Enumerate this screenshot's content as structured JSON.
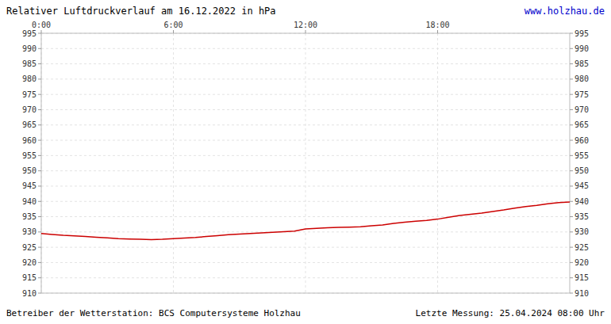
{
  "chart_data": {
    "type": "line",
    "title": "Relativer Luftdruckverlauf am 16.12.2022 in hPa",
    "x": [
      0,
      30,
      60,
      90,
      120,
      150,
      180,
      210,
      240,
      270,
      300,
      330,
      360,
      390,
      420,
      450,
      480,
      510,
      540,
      570,
      600,
      630,
      660,
      690,
      720,
      750,
      780,
      810,
      840,
      870,
      900,
      930,
      960,
      990,
      1020,
      1050,
      1080,
      1110,
      1140,
      1170,
      1200,
      1230,
      1260,
      1290,
      1320,
      1350,
      1380,
      1410,
      1440
    ],
    "values": [
      929.5,
      929.2,
      928.9,
      928.7,
      928.5,
      928.3,
      928.1,
      927.8,
      927.7,
      927.6,
      927.5,
      927.6,
      927.8,
      928.0,
      928.2,
      928.5,
      928.8,
      929.1,
      929.3,
      929.5,
      929.7,
      929.9,
      930.1,
      930.3,
      931.0,
      931.2,
      931.4,
      931.5,
      931.6,
      931.7,
      932.0,
      932.3,
      932.8,
      933.2,
      933.5,
      933.8,
      934.2,
      934.8,
      935.4,
      935.8,
      936.2,
      936.7,
      937.2,
      937.8,
      938.3,
      938.7,
      939.2,
      939.6,
      939.8
    ],
    "color": "#cc0000",
    "xlim": [
      0,
      1440
    ],
    "xticks": [
      {
        "value": 0,
        "label": "0:00"
      },
      {
        "value": 360,
        "label": "6:00"
      },
      {
        "value": 720,
        "label": "12:00"
      },
      {
        "value": 1080,
        "label": "18:00"
      }
    ],
    "ylim": [
      910,
      995
    ],
    "yticks": [
      910,
      915,
      920,
      925,
      930,
      935,
      940,
      945,
      950,
      955,
      960,
      965,
      970,
      975,
      980,
      985,
      990,
      995
    ],
    "grid": true,
    "annotations": [
      {
        "text": "www.holzhau.de",
        "color": "#0000cc"
      },
      {
        "text": "Betreiber der Wetterstation: BCS Computersysteme Holzhau",
        "color": "#000000"
      },
      {
        "text": "Letzte Messung: 25.04.2024 08:00 Uhr",
        "color": "#000000"
      }
    ]
  }
}
